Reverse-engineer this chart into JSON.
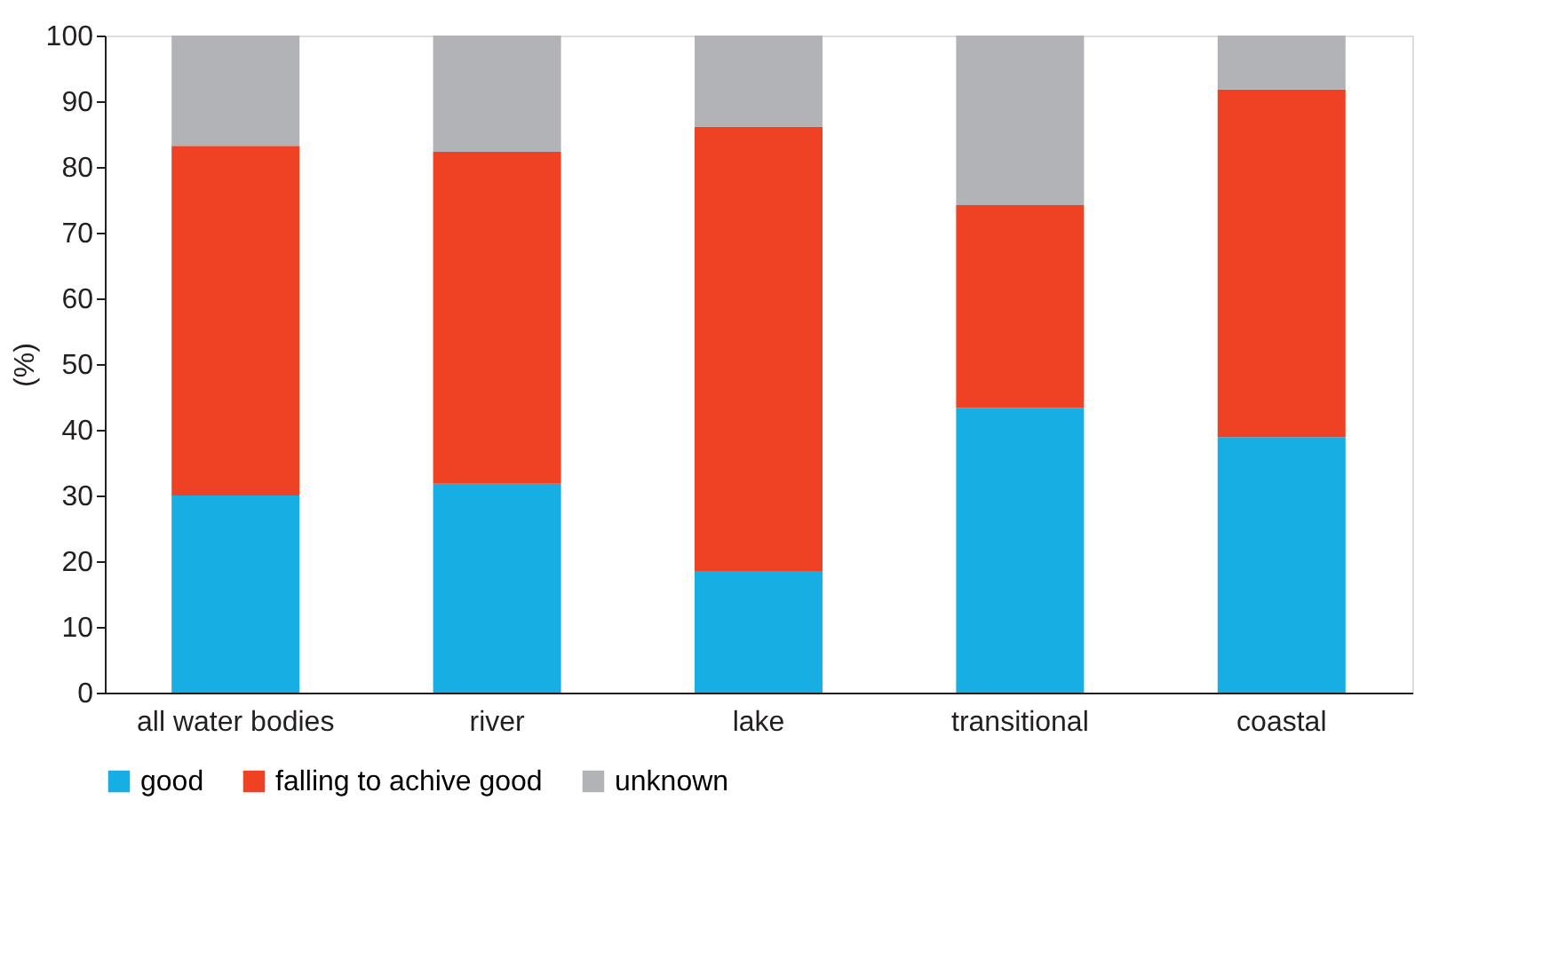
{
  "chart_data": {
    "type": "bar",
    "stacked": true,
    "ylabel": "(%)",
    "categories": [
      "all water bodies",
      "river",
      "lake",
      "transitional",
      "coastal"
    ],
    "series": [
      {
        "name": "good",
        "color": "#16aee3",
        "values": [
          30.0,
          31.8,
          18.5,
          43.3,
          38.9
        ]
      },
      {
        "name": "falling to achive good",
        "color": "#ef4123",
        "values": [
          53.2,
          50.5,
          67.6,
          30.9,
          52.9
        ]
      },
      {
        "name": "unknown",
        "color": "#b1b3b6",
        "values": [
          16.8,
          17.7,
          13.9,
          25.8,
          8.2
        ]
      }
    ],
    "ylim": [
      0,
      100
    ],
    "yticks": [
      0,
      10,
      20,
      30,
      40,
      50,
      60,
      70,
      80,
      90,
      100
    ],
    "grid": false,
    "legend": "bottom"
  }
}
